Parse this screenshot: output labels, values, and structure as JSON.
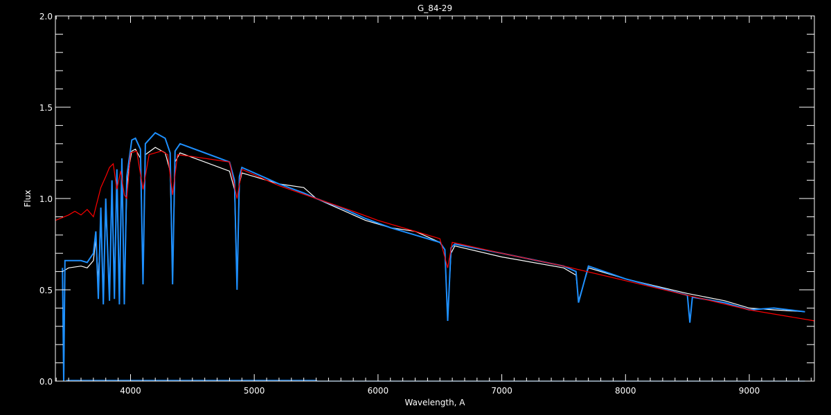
{
  "chart_data": {
    "type": "line",
    "title": "G_84-29",
    "xlabel": "Wavelength, A",
    "ylabel": "Flux",
    "xlim": [
      3393,
      9526
    ],
    "ylim": [
      0,
      2.0
    ],
    "xticks": [
      4000,
      5000,
      6000,
      7000,
      8000,
      9000
    ],
    "xtick_labels": [
      "4000",
      "5000",
      "6000",
      "7000",
      "8000",
      "9000"
    ],
    "yticks": [
      0,
      0.5,
      1.0,
      1.5,
      2.0
    ],
    "ytick_labels": [
      "0.0",
      "0.5",
      "1.0",
      "1.5",
      "2.0"
    ],
    "grid": false,
    "background": "#000000",
    "series": [
      {
        "color": "#ffffff",
        "x": [
          3450,
          3500,
          3600,
          3650,
          3700,
          3720,
          3740,
          3760,
          3780,
          3800,
          3830,
          3850,
          3870,
          3890,
          3910,
          3930,
          3950,
          3970,
          3990,
          4010,
          4040,
          4080,
          4101,
          4120,
          4200,
          4280,
          4320,
          4340,
          4360,
          4400,
          4600,
          4800,
          4840,
          4861,
          4880,
          4900,
          5000,
          5200,
          5400,
          5500,
          5700,
          5900,
          6100,
          6300,
          6500,
          6540,
          6563,
          6590,
          6620,
          7000,
          7500,
          7600,
          7620,
          7700,
          8000,
          8500,
          8800,
          9000,
          9200,
          9450
        ],
        "y": [
          0.6,
          0.62,
          0.63,
          0.62,
          0.66,
          0.78,
          0.55,
          0.9,
          0.45,
          0.95,
          0.48,
          1.05,
          0.55,
          1.1,
          0.45,
          1.15,
          0.45,
          1.05,
          1.18,
          1.26,
          1.27,
          1.22,
          0.55,
          1.24,
          1.28,
          1.25,
          1.15,
          0.55,
          1.2,
          1.25,
          1.2,
          1.15,
          1.05,
          0.5,
          1.08,
          1.14,
          1.12,
          1.08,
          1.06,
          1.0,
          0.94,
          0.88,
          0.84,
          0.82,
          0.76,
          0.72,
          0.35,
          0.7,
          0.74,
          0.68,
          0.62,
          0.58,
          0.44,
          0.62,
          0.56,
          0.48,
          0.44,
          0.4,
          0.39,
          0.38
        ]
      },
      {
        "color": "#1e90ff",
        "x": [
          3450,
          3460,
          3470,
          3500,
          3600,
          3650,
          3700,
          3720,
          3740,
          3760,
          3780,
          3800,
          3830,
          3850,
          3870,
          3890,
          3910,
          3930,
          3950,
          3970,
          3990,
          4010,
          4040,
          4080,
          4101,
          4120,
          4200,
          4280,
          4320,
          4340,
          4360,
          4400,
          4600,
          4800,
          4840,
          4861,
          4880,
          4900,
          5000,
          5200,
          5400,
          5500,
          5700,
          5900,
          6100,
          6300,
          6500,
          6540,
          6563,
          6590,
          6620,
          7000,
          7500,
          7600,
          7620,
          7700,
          8000,
          8500,
          8520,
          8540,
          8800,
          9000,
          9200,
          9450
        ],
        "y": [
          0.62,
          0.0,
          0.66,
          0.66,
          0.66,
          0.65,
          0.7,
          0.82,
          0.45,
          0.95,
          0.42,
          1.0,
          0.44,
          1.1,
          0.45,
          1.16,
          0.42,
          1.22,
          0.42,
          1.12,
          1.22,
          1.32,
          1.33,
          1.27,
          0.53,
          1.3,
          1.36,
          1.33,
          1.25,
          0.53,
          1.26,
          1.3,
          1.25,
          1.2,
          1.1,
          0.5,
          1.12,
          1.17,
          1.14,
          1.08,
          1.03,
          1.0,
          0.95,
          0.89,
          0.84,
          0.8,
          0.76,
          0.72,
          0.33,
          0.73,
          0.75,
          0.7,
          0.63,
          0.6,
          0.43,
          0.63,
          0.56,
          0.47,
          0.32,
          0.46,
          0.43,
          0.39,
          0.4,
          0.38
        ]
      },
      {
        "color": "#ff0000",
        "x": [
          3393,
          3500,
          3550,
          3600,
          3650,
          3700,
          3730,
          3760,
          3800,
          3830,
          3860,
          3890,
          3920,
          3950,
          3970,
          4000,
          4050,
          4101,
          4150,
          4250,
          4300,
          4340,
          4380,
          4500,
          4700,
          4800,
          4861,
          4900,
          5000,
          5200,
          5500,
          5800,
          6000,
          6300,
          6500,
          6563,
          6600,
          7000,
          7500,
          8000,
          8500,
          9000,
          9526
        ],
        "y": [
          0.88,
          0.91,
          0.93,
          0.91,
          0.94,
          0.9,
          0.98,
          1.06,
          1.12,
          1.17,
          1.19,
          1.05,
          1.15,
          1.02,
          1.0,
          1.25,
          1.26,
          1.05,
          1.24,
          1.26,
          1.24,
          1.02,
          1.24,
          1.23,
          1.21,
          1.2,
          1.0,
          1.16,
          1.13,
          1.07,
          1.0,
          0.93,
          0.88,
          0.82,
          0.78,
          0.62,
          0.76,
          0.7,
          0.63,
          0.55,
          0.47,
          0.39,
          0.33
        ]
      },
      {
        "color": "#1e90ff",
        "x": [
          3480,
          5500,
          5510,
          9450
        ],
        "y": [
          0.005,
          0.005,
          0.0,
          0.0
        ]
      }
    ]
  }
}
